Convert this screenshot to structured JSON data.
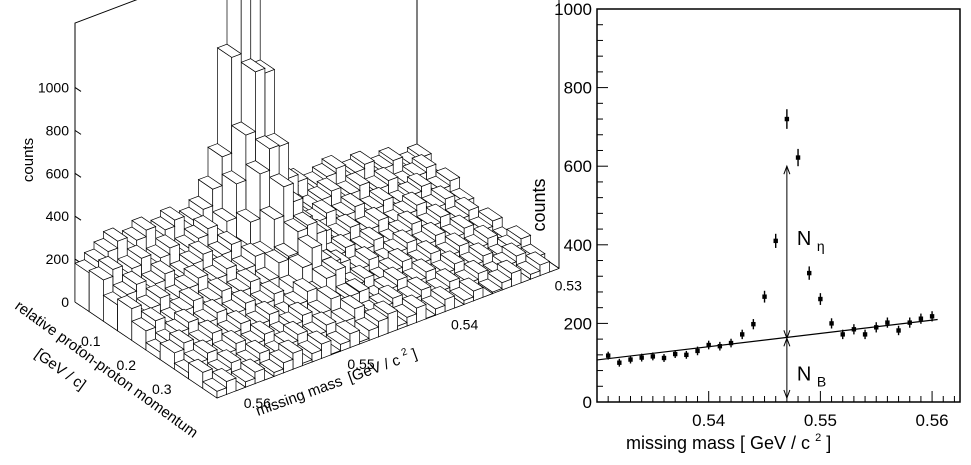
{
  "chart_data": [
    {
      "type": "bar3d",
      "zlabel": "counts",
      "xlabel_line1": "relative proton-proton momentum",
      "xlabel_line2": "[GeV / c]",
      "ylabel_main": "missing mass",
      "ylabel_unit": "[GeV / c",
      "ylabel_unit_sup": "2",
      "ylabel_unit_close": "]",
      "z_ticks": [
        "0",
        "200",
        "400",
        "600",
        "800",
        "1000"
      ],
      "x_ticks": [
        "0.1",
        "0.2",
        "0.3"
      ],
      "y_ticks": [
        "0.56",
        "0.55",
        "0.54",
        "0.53"
      ],
      "zlim": [
        0,
        1300
      ],
      "peak_missing_mass": 0.547,
      "peak_height": 1100
    },
    {
      "type": "scatter",
      "xlabel_main": "missing mass  [ GeV / c",
      "xlabel_sup": "2",
      "xlabel_close": " ]",
      "ylabel": "counts",
      "xlim": [
        0.53,
        0.5625
      ],
      "ylim": [
        0,
        1000
      ],
      "x_ticks": [
        "0.54",
        "0.55",
        "0.56"
      ],
      "y_ticks": [
        "0",
        "200",
        "400",
        "600",
        "800",
        "1000"
      ],
      "x": [
        0.531,
        0.532,
        0.533,
        0.534,
        0.535,
        0.536,
        0.537,
        0.538,
        0.539,
        0.54,
        0.541,
        0.542,
        0.543,
        0.544,
        0.545,
        0.546,
        0.547,
        0.548,
        0.549,
        0.55,
        0.551,
        0.552,
        0.553,
        0.554,
        0.555,
        0.556,
        0.557,
        0.558,
        0.559,
        0.56
      ],
      "y": [
        118,
        100,
        108,
        113,
        116,
        112,
        122,
        120,
        130,
        145,
        142,
        150,
        172,
        198,
        268,
        410,
        720,
        622,
        328,
        262,
        200,
        172,
        185,
        172,
        190,
        202,
        182,
        202,
        212,
        218
      ],
      "y_err": [
        10,
        10,
        10,
        10,
        10,
        10,
        10,
        10,
        11,
        11,
        11,
        11,
        12,
        13,
        15,
        18,
        25,
        22,
        17,
        15,
        13,
        12,
        13,
        12,
        13,
        13,
        12,
        13,
        13,
        13
      ],
      "fit_line": {
        "x": [
          0.53,
          0.5605
        ],
        "y": [
          107,
          210
        ]
      },
      "annotations": {
        "signal_label": "N",
        "signal_sub": "η",
        "background_label": "N",
        "background_sub": "B",
        "arrow_x": 0.547,
        "signal_range": [
          162,
          600
        ],
        "background_range": [
          0,
          162
        ]
      }
    }
  ]
}
